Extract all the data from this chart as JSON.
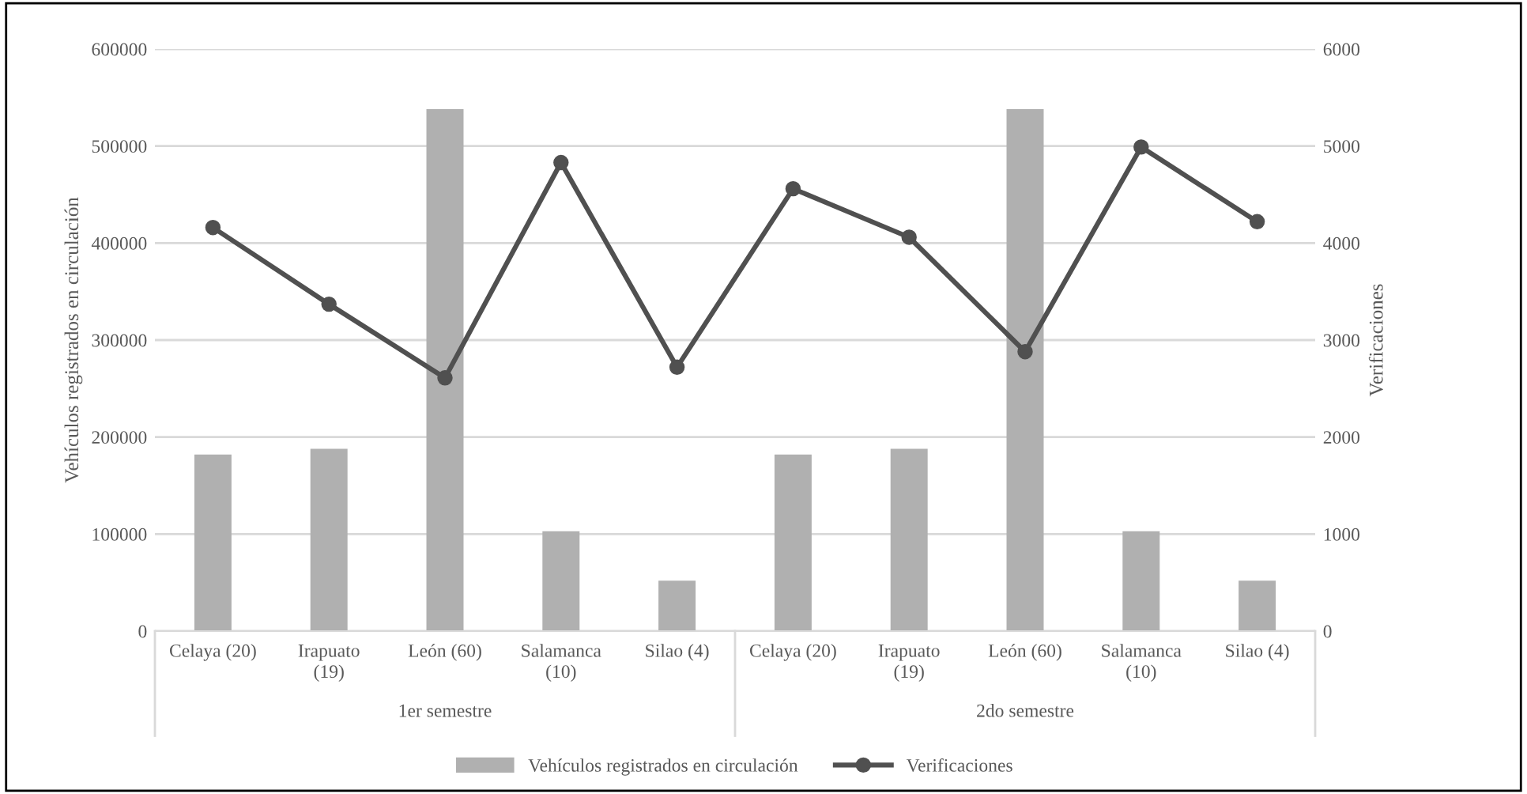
{
  "chart_data": {
    "type": "bar",
    "categories": [
      "Celaya (20)",
      "Irapuato (19)",
      "León (60)",
      "Salamanca (10)",
      "Silao (4)",
      "Celaya (20)",
      "Irapuato (19)",
      "León (60)",
      "Salamanca (10)",
      "Silao (4)"
    ],
    "series": [
      {
        "name": "Vehículos registrados en circulación",
        "color": "#b0b0b0",
        "values": [
          182000,
          188000,
          538000,
          103000,
          52000,
          182000,
          188000,
          538000,
          103000,
          52000
        ]
      },
      {
        "name": "Verificaciones",
        "type": "line",
        "axis": "y2",
        "color": "#505050",
        "values": [
          4160,
          3370,
          2610,
          4830,
          2720,
          4560,
          4060,
          2880,
          4990,
          4220
        ]
      }
    ],
    "ylabel": "Vehículos registrados en circulación",
    "y2label": "Verificaciones",
    "ylim": [
      0,
      600000
    ],
    "yticks": [
      0,
      100000,
      200000,
      300000,
      400000,
      500000,
      600000
    ],
    "y2lim": [
      0,
      6000
    ],
    "y2ticks": [
      0,
      1000,
      2000,
      3000,
      4000,
      5000,
      6000
    ],
    "annotations": [
      "1er semestre",
      "2do semestre"
    ],
    "grid": "y",
    "legend": "bottom",
    "marker": "circle",
    "line_style": "solid"
  }
}
